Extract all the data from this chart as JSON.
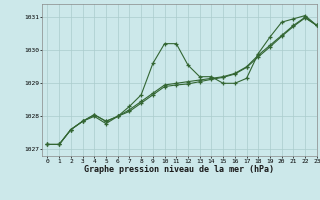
{
  "title": "Graphe pression niveau de la mer (hPa)",
  "bg_color": "#cce8ea",
  "grid_color": "#aacccc",
  "line_color": "#336633",
  "marker_color": "#336633",
  "xlim": [
    -0.5,
    23
  ],
  "ylim": [
    1026.8,
    1031.4
  ],
  "yticks": [
    1027,
    1028,
    1029,
    1030,
    1031
  ],
  "xticks": [
    0,
    1,
    2,
    3,
    4,
    5,
    6,
    7,
    8,
    9,
    10,
    11,
    12,
    13,
    14,
    15,
    16,
    17,
    18,
    19,
    20,
    21,
    22,
    23
  ],
  "series1_x": [
    0,
    1,
    2,
    3,
    4,
    5,
    6,
    7,
    8,
    9,
    10,
    11,
    12,
    13,
    14,
    15,
    16,
    17,
    18,
    19,
    20,
    21,
    22,
    23
  ],
  "series1_y": [
    1027.15,
    1027.15,
    1027.6,
    1027.85,
    1028.0,
    1027.78,
    1028.0,
    1028.3,
    1028.65,
    1029.6,
    1030.2,
    1030.2,
    1029.55,
    1029.2,
    1029.2,
    1029.0,
    1029.0,
    1029.15,
    1029.9,
    1030.4,
    1030.85,
    1030.95,
    1031.05,
    1030.75
  ],
  "series2_x": [
    0,
    1,
    2,
    3,
    4,
    5,
    6,
    7,
    8,
    9,
    10,
    11,
    12,
    13,
    14,
    15,
    16,
    17,
    18,
    19,
    20,
    21,
    22,
    23
  ],
  "series2_y": [
    1027.15,
    1027.15,
    1027.6,
    1027.85,
    1028.05,
    1027.85,
    1028.0,
    1028.2,
    1028.45,
    1028.7,
    1028.95,
    1029.0,
    1029.05,
    1029.1,
    1029.15,
    1029.2,
    1029.3,
    1029.5,
    1029.85,
    1030.15,
    1030.45,
    1030.75,
    1031.0,
    1030.75
  ],
  "series3_x": [
    0,
    1,
    2,
    3,
    4,
    5,
    6,
    7,
    8,
    9,
    10,
    11,
    12,
    13,
    14,
    15,
    16,
    17,
    18,
    19,
    20,
    21,
    22,
    23
  ],
  "series3_y": [
    1027.15,
    1027.15,
    1027.6,
    1027.85,
    1028.05,
    1027.85,
    1028.0,
    1028.15,
    1028.4,
    1028.65,
    1028.9,
    1028.95,
    1028.98,
    1029.05,
    1029.12,
    1029.18,
    1029.28,
    1029.48,
    1029.8,
    1030.1,
    1030.42,
    1030.72,
    1030.98,
    1030.75
  ]
}
